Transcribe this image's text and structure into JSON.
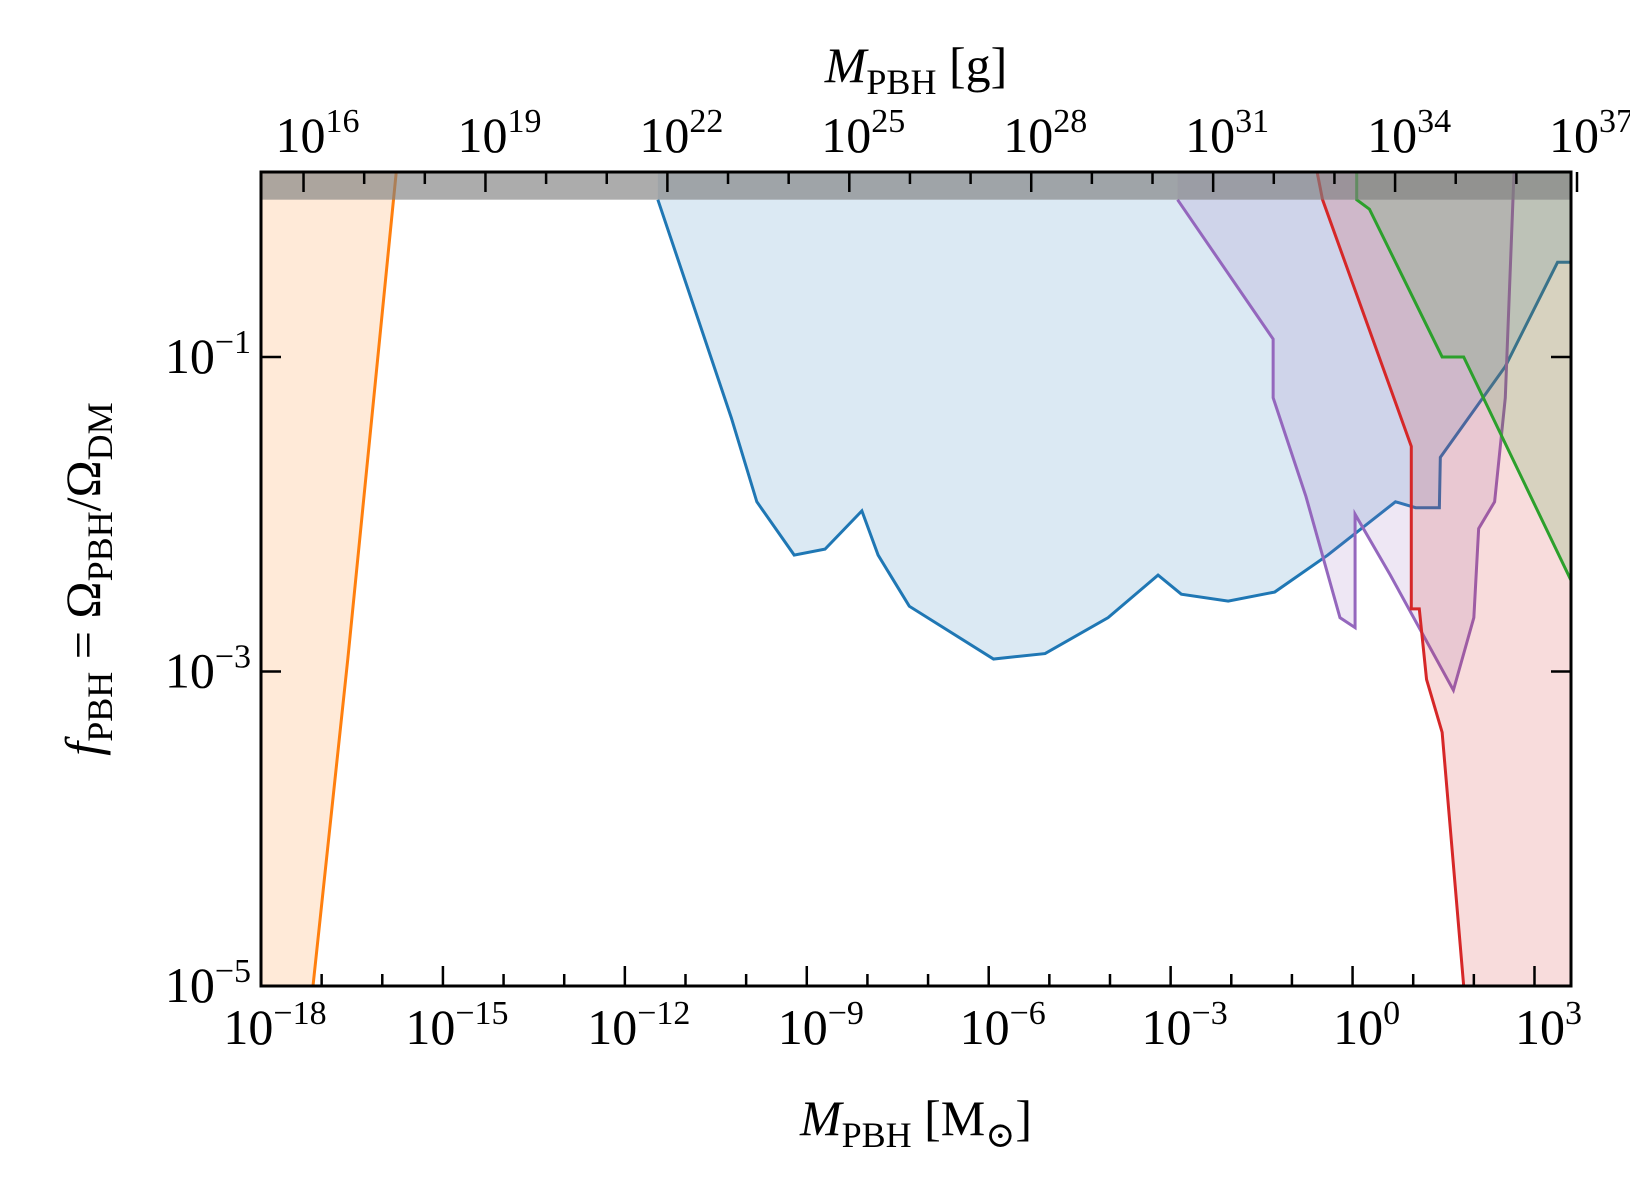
{
  "chart_data": {
    "type": "area",
    "xlabel": [
      "M",
      "PBH",
      " [M",
      "⊙",
      "]"
    ],
    "ylabel": [
      "f",
      "PBH",
      " = Ω",
      "PBH",
      "/Ω",
      "DM"
    ],
    "x2label": [
      "M",
      "PBH",
      " [g]"
    ],
    "xscale": "log",
    "yscale": "log",
    "x2scale": "log",
    "xlim": [
      1e-18,
      4000
    ],
    "ylim": [
      1e-05,
      1.5
    ],
    "x2lim": [
      1989000000000000.0,
      7.96e+36
    ],
    "xticks": [
      {
        "value": 1e-18,
        "label": "10",
        "exponent": "−18"
      },
      {
        "value": 1e-15,
        "label": "10",
        "exponent": "−15"
      },
      {
        "value": 1e-12,
        "label": "10",
        "exponent": "−12"
      },
      {
        "value": 1e-09,
        "label": "10",
        "exponent": "−9"
      },
      {
        "value": 1e-06,
        "label": "10",
        "exponent": "−6"
      },
      {
        "value": 0.001,
        "label": "10",
        "exponent": "−3"
      },
      {
        "value": 1,
        "label": "10",
        "exponent": "0"
      },
      {
        "value": 1000,
        "label": "10",
        "exponent": "3"
      }
    ],
    "xminorticks": [
      1e-17,
      1e-16,
      1e-14,
      1e-13,
      1e-11,
      1e-10,
      1e-08,
      1e-07,
      1e-05,
      0.0001,
      0.01,
      0.1,
      10,
      100
    ],
    "x2ticks": [
      {
        "value": 1e+16,
        "label": "10",
        "exponent": "16"
      },
      {
        "value": 1e+19,
        "label": "10",
        "exponent": "19"
      },
      {
        "value": 1e+22,
        "label": "10",
        "exponent": "22"
      },
      {
        "value": 1e+25,
        "label": "10",
        "exponent": "25"
      },
      {
        "value": 1e+28,
        "label": "10",
        "exponent": "28"
      },
      {
        "value": 1e+31,
        "label": "10",
        "exponent": "31"
      },
      {
        "value": 1e+34,
        "label": "10",
        "exponent": "34"
      },
      {
        "value": 1e+37,
        "label": "10",
        "exponent": "37"
      }
    ],
    "x2minorticks": [
      1e+17,
      1e+18,
      1e+20,
      1e+21,
      1e+23,
      1e+24,
      1e+26,
      1e+27,
      1e+29,
      1e+30,
      1e+32,
      1e+33,
      1e+35,
      1e+36
    ],
    "yticks": [
      {
        "value": 1e-05,
        "label": "10",
        "exponent": "−5"
      },
      {
        "value": 0.001,
        "label": "10",
        "exponent": "−3"
      },
      {
        "value": 0.1,
        "label": "10",
        "exponent": "−1"
      }
    ],
    "shade_above": 1,
    "shade_color": "#808080",
    "series": [
      {
        "color": "#ff7f0e",
        "fill": "left",
        "x": [
          7.2e-18,
          2.7e-17,
          1.7e-16
        ],
        "values": [
          1e-05,
          0.0012,
          1.5
        ]
      },
      {
        "color": "#1f77b4",
        "fill": "above",
        "x": [
          3.5e-12,
          5.7e-11,
          1.5e-10,
          6.2e-10,
          2e-09,
          8.1e-09,
          1.5e-08,
          4.9e-08,
          1.2e-06,
          8.5e-06,
          9.3e-05,
          0.00062,
          0.0015,
          0.0089,
          0.052,
          0.39,
          5.1,
          11,
          27,
          28,
          330,
          2400,
          4000
        ],
        "values": [
          1,
          0.041,
          0.012,
          0.0055,
          0.006,
          0.0105,
          0.0055,
          0.0026,
          0.0012,
          0.0013,
          0.0022,
          0.0041,
          0.0031,
          0.0028,
          0.0032,
          0.0055,
          0.012,
          0.011,
          0.011,
          0.023,
          0.087,
          0.4,
          0.4
        ]
      },
      {
        "color": "#9467bd",
        "fill": "above",
        "x": [
          0.0013,
          0.049,
          0.049,
          0.17,
          0.62,
          1.1,
          1.1,
          4.2,
          46,
          100,
          120,
          220,
          330,
          460
        ],
        "values": [
          1,
          0.13,
          0.055,
          0.013,
          0.0022,
          0.0019,
          0.01,
          0.0041,
          0.00076,
          0.0022,
          0.0081,
          0.012,
          0.055,
          1.5
        ]
      },
      {
        "color": "#d62728",
        "fill": "above",
        "x": [
          0.26,
          0.32,
          9.3,
          9.3,
          12.6,
          16.6,
          30,
          68
        ],
        "values": [
          1.5,
          1,
          0.027,
          0.0025,
          0.0025,
          0.00089,
          0.00041,
          1e-05
        ]
      },
      {
        "color": "#2ca02c",
        "fill": "above",
        "x": [
          1.17,
          1.17,
          1.9,
          30,
          68,
          4000
        ],
        "values": [
          1.5,
          1,
          0.87,
          0.1,
          0.1,
          0.0038
        ]
      }
    ]
  }
}
